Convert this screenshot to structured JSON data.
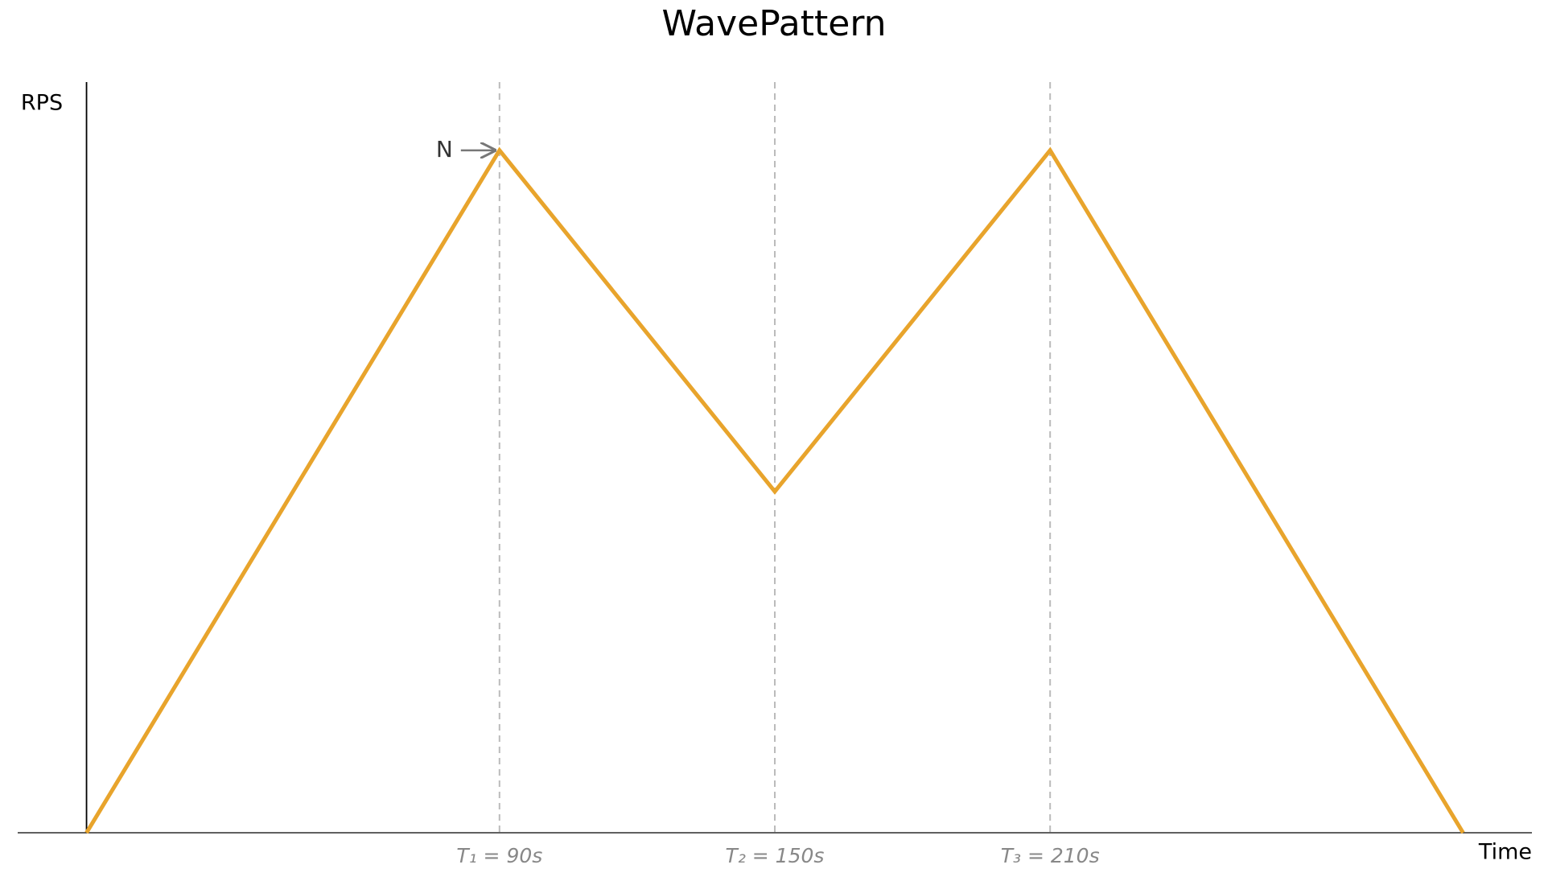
{
  "chart_data": {
    "type": "line",
    "title": "WavePattern",
    "y_label": "RPS",
    "x_label": "Time",
    "annotation": "N",
    "x": [
      0,
      90,
      150,
      210,
      300
    ],
    "series": [
      {
        "name": "RPS",
        "color": "#e8a42c",
        "values": [
          0,
          1,
          0.5,
          1,
          0
        ]
      }
    ],
    "xlim": [
      -15,
      315
    ],
    "ylim": [
      0,
      1.1
    ],
    "xticks": [
      {
        "value": 90,
        "label": "T₁ = 90s"
      },
      {
        "value": 150,
        "label": "T₂ = 150s"
      },
      {
        "value": 210,
        "label": "T₃ = 210s"
      }
    ],
    "grid": true
  }
}
